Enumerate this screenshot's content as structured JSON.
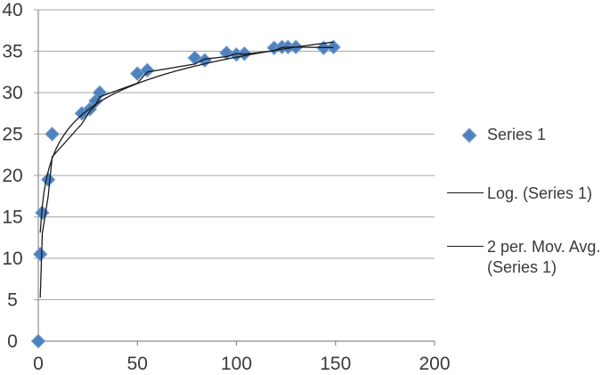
{
  "chart_data": {
    "type": "scatter",
    "title": "",
    "xlabel": "",
    "ylabel": "",
    "grid": "horizontal-major",
    "legend_position": "right",
    "x_axis": {
      "min": 0,
      "max": 200,
      "ticks": [
        0,
        50,
        100,
        150,
        200
      ]
    },
    "y_axis": {
      "min": 0,
      "max": 40,
      "ticks": [
        0,
        5,
        10,
        15,
        20,
        25,
        30,
        35,
        40
      ]
    },
    "series": [
      {
        "name": "Series 1",
        "marker": "diamond",
        "color": "#4F81BD",
        "points": [
          [
            0,
            0
          ],
          [
            1,
            10.5
          ],
          [
            2,
            15.5
          ],
          [
            5,
            19.5
          ],
          [
            7,
            25
          ],
          [
            22,
            27.5
          ],
          [
            26,
            28
          ],
          [
            29,
            29
          ],
          [
            31,
            30
          ],
          [
            50,
            32.3
          ],
          [
            55,
            32.7
          ],
          [
            79,
            34.2
          ],
          [
            84,
            33.9
          ],
          [
            95,
            34.8
          ],
          [
            100,
            34.6
          ],
          [
            104,
            34.7
          ],
          [
            119,
            35.4
          ],
          [
            123,
            35.5
          ],
          [
            126,
            35.5
          ],
          [
            130,
            35.5
          ],
          [
            144,
            35.4
          ],
          [
            149,
            35.5
          ]
        ]
      }
    ],
    "trendlines": [
      {
        "name": "Log. (Series 1)",
        "kind": "logarithmic",
        "a": 4.6,
        "b": 13.1,
        "x_start": 1,
        "x_end": 149,
        "color": "#1a1a1a"
      },
      {
        "name": "2 per. Mov. Avg. (Series 1)",
        "kind": "moving_average",
        "period": 2,
        "color": "#1a1a1a"
      }
    ]
  },
  "legend": {
    "items": [
      {
        "label": "Series 1",
        "swatch": "diamond"
      },
      {
        "label": "Log. (Series 1)",
        "swatch": "line"
      },
      {
        "label": "2 per. Mov. Avg. (Series 1)",
        "swatch": "line"
      }
    ]
  },
  "colors": {
    "marker_fill": "#4F81BD",
    "marker_edge": "#6F9BD1",
    "trendline": "#1a1a1a",
    "gridline": "#A6A6A6",
    "axis": "#8C8C8C",
    "label_text": "#3a3a3a"
  }
}
